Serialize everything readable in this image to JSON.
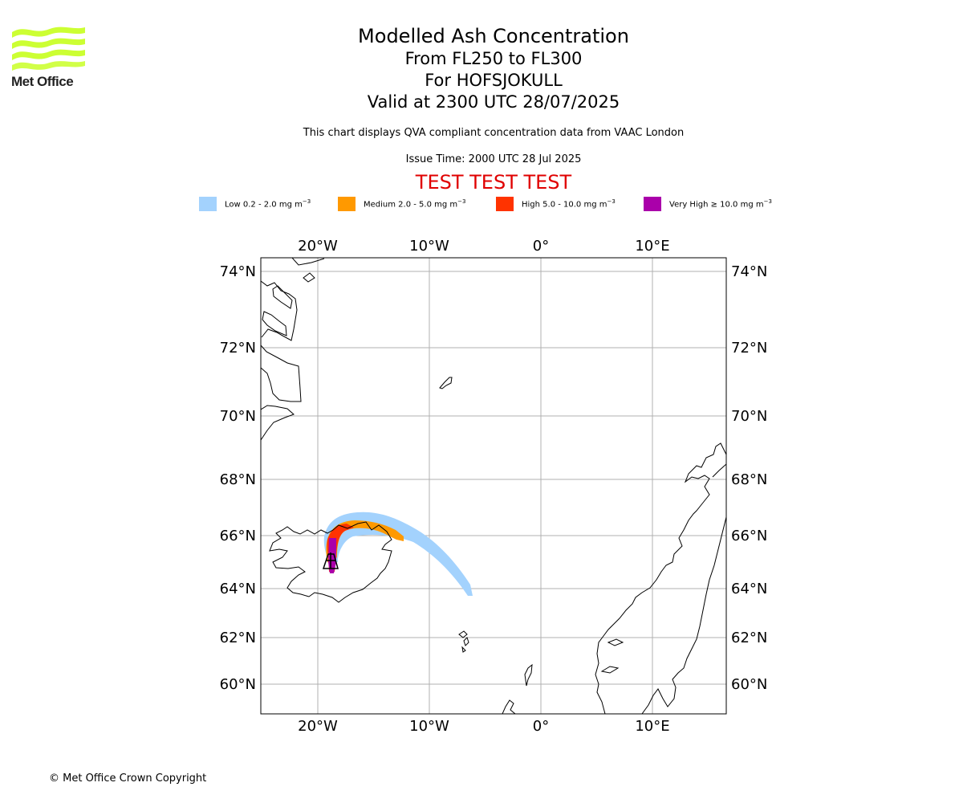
{
  "logo": {
    "text": "Met Office",
    "color": "#ccff33"
  },
  "header": {
    "title": "Modelled Ash Concentration",
    "levels": "From FL250 to FL300",
    "volcano": "For HOFSJOKULL",
    "valid": "Valid at 2300 UTC 28/07/2025",
    "compliance": "This chart displays QVA compliant concentration data from VAAC London",
    "issue": "Issue Time: 2000 UTC 28 Jul 2025",
    "test": "TEST TEST TEST"
  },
  "legend": [
    {
      "label": "Low 0.2 - 2.0 mg m",
      "color": "#a3d2fd"
    },
    {
      "label": "Medium 2.0 - 5.0 mg m",
      "color": "#ff9900"
    },
    {
      "label": "High 5.0 - 10.0 mg m",
      "color": "#ff3300"
    },
    {
      "label": "Very High ≥ 10.0 mg m",
      "color": "#aa00aa"
    }
  ],
  "legend_unit_exponent": "−3",
  "map": {
    "lon_labels": [
      "20°W",
      "10°W",
      "0°",
      "10°E"
    ],
    "lat_labels": [
      "74°N",
      "72°N",
      "70°N",
      "68°N",
      "66°N",
      "64°N",
      "62°N",
      "60°N"
    ],
    "lon_range": [
      -25,
      16.5
    ],
    "lat_range": [
      59,
      74.4
    ],
    "volcano_marker": "volcano-icon"
  },
  "footer": {
    "copyright": "© Met Office Crown Copyright"
  }
}
